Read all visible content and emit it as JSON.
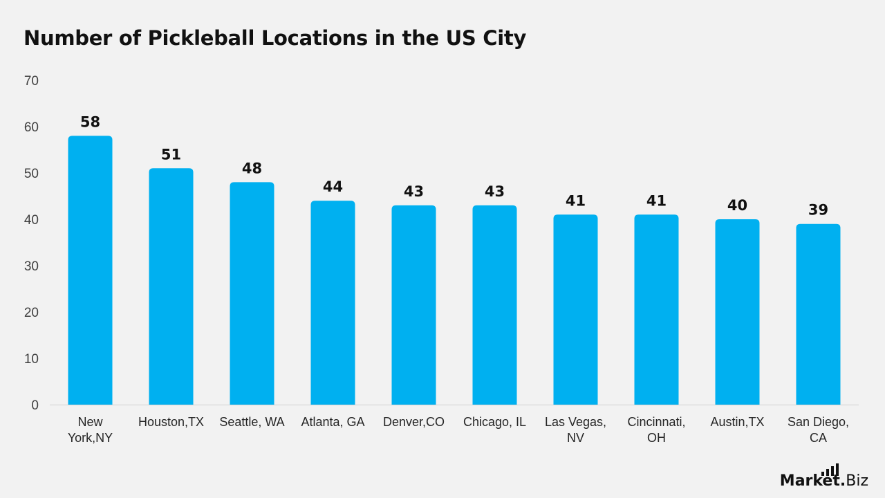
{
  "chart_data": {
    "type": "bar",
    "title": "Number of Pickleball Locations in the US City",
    "xlabel": "",
    "ylabel": "",
    "categories": [
      [
        "New",
        "York,NY"
      ],
      [
        "Houston,TX"
      ],
      [
        "Seattle, WA"
      ],
      [
        "Atlanta, GA"
      ],
      [
        "Denver,CO"
      ],
      [
        "Chicago, IL"
      ],
      [
        "Las Vegas,",
        "NV"
      ],
      [
        "Cincinnati,",
        "OH"
      ],
      [
        "Austin,TX"
      ],
      [
        "San Diego,",
        "CA"
      ]
    ],
    "values": [
      58,
      51,
      48,
      44,
      43,
      43,
      41,
      41,
      40,
      39
    ],
    "ylim": [
      0,
      70
    ],
    "yticks": [
      0,
      10,
      20,
      30,
      40,
      50,
      60,
      70
    ],
    "grid": false,
    "data_labels": true,
    "bar_color": "#00b0f0"
  },
  "branding": {
    "logo_main": "Market",
    "logo_dot": ".",
    "logo_suffix": "Biz",
    "icon": "bar-signal-icon"
  }
}
